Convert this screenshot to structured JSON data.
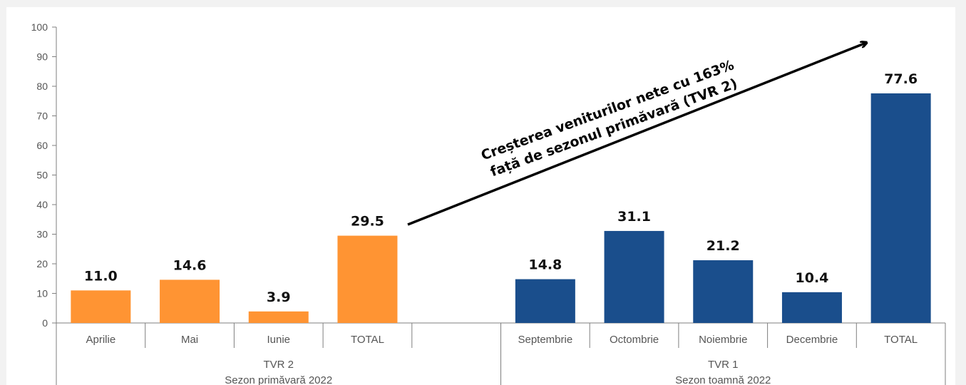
{
  "chart_data": {
    "type": "bar",
    "ylim": [
      0,
      100
    ],
    "yticks": [
      0,
      10,
      20,
      30,
      40,
      50,
      60,
      70,
      80,
      90,
      100
    ],
    "grid": false,
    "categories": [
      "Aprilie",
      "Mai",
      "Iunie",
      "TOTAL",
      "",
      "Septembrie",
      "Octombrie",
      "Noiembrie",
      "Decembrie",
      "TOTAL"
    ],
    "series": [
      {
        "values": [
          11.0,
          14.6,
          3.9,
          29.5,
          null,
          14.8,
          31.1,
          21.2,
          10.4,
          77.6
        ],
        "labels": [
          "11.0",
          "14.6",
          "3.9",
          "29.5",
          "",
          "14.8",
          "31.1",
          "21.2",
          "10.4",
          "77.6"
        ]
      }
    ],
    "groups": [
      {
        "line1": "TVR 2",
        "line2": "Sezon primăvară 2022",
        "start": 0,
        "end": 4
      },
      {
        "line1": "TVR 1",
        "line2": "Sezon toamnă 2022",
        "start": 5,
        "end": 9
      }
    ],
    "annotation": {
      "line1": "Creșterea veniturilor nete cu 163%",
      "line2": "față de sezonul primăvară (TVR 2)"
    },
    "colors": {
      "spring": "#ff9433",
      "autumn": "#1a4e8c",
      "axis": "#7f7f7f"
    }
  }
}
